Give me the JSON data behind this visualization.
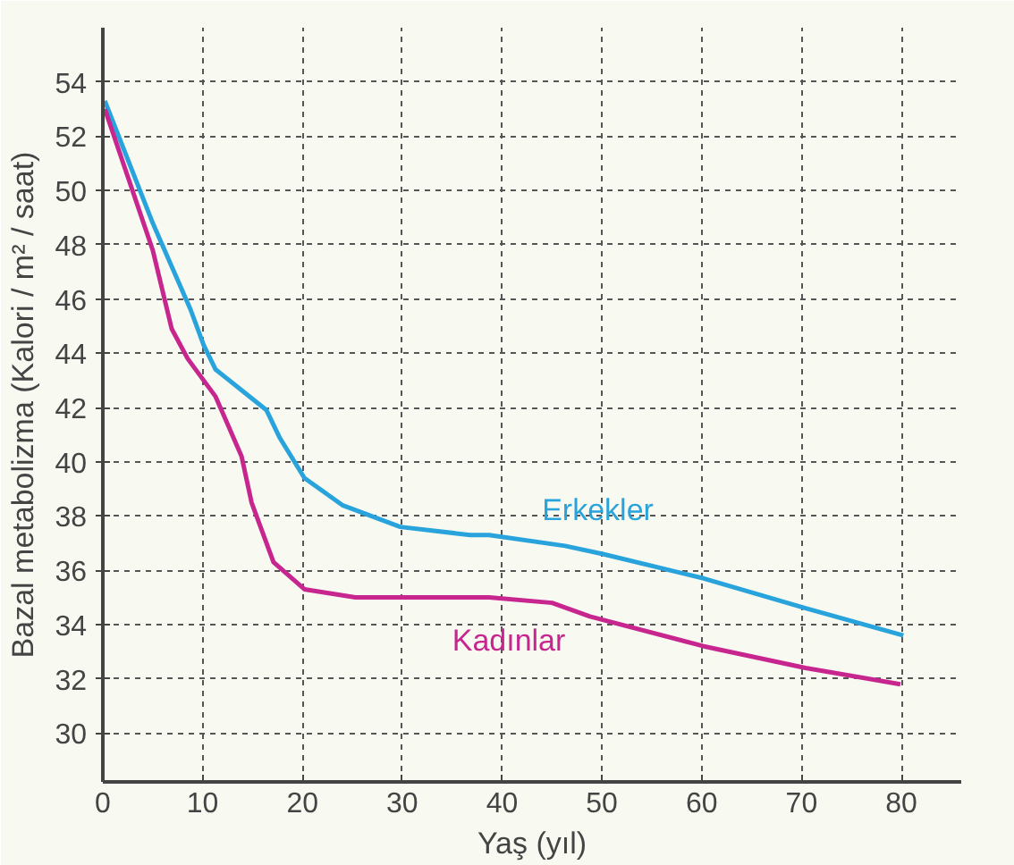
{
  "chart_data": {
    "type": "line",
    "xlabel": "Yaş (yıl)",
    "ylabel": "Bazal metabolizma (Kalori / m² / saat)",
    "xlim": [
      0,
      86
    ],
    "ylim": [
      28.2,
      56
    ],
    "xticks": [
      0,
      10,
      20,
      30,
      40,
      50,
      60,
      70,
      80
    ],
    "yticks": [
      30,
      32,
      34,
      36,
      38,
      40,
      42,
      44,
      46,
      48,
      50,
      52,
      54
    ],
    "grid": true,
    "line_style": "solid",
    "series": [
      {
        "name": "Erkekler",
        "color": "#29a3dc",
        "x": [
          0.2,
          5,
          8.8,
          10.1,
          11.3,
          16.4,
          17.7,
          20.2,
          24,
          29.8,
          36.8,
          38.7,
          46.3,
          50.1,
          60.2,
          70.4,
          80.2
        ],
        "values": [
          53.3,
          48.8,
          45.6,
          44.3,
          43.4,
          41.9,
          40.9,
          39.4,
          38.4,
          37.6,
          37.3,
          37.3,
          36.9,
          36.6,
          35.7,
          34.6,
          33.6
        ]
      },
      {
        "name": "Kadınlar",
        "color": "#c8268f",
        "x": [
          0.2,
          5,
          6.9,
          8.5,
          11.3,
          13.9,
          14.9,
          17.1,
          20.2,
          25.3,
          36.8,
          38.7,
          45,
          48.8,
          60.2,
          70.4,
          79.9
        ],
        "values": [
          53,
          47.8,
          44.9,
          43.8,
          42.4,
          40.2,
          38.5,
          36.3,
          35.3,
          35,
          35,
          35,
          34.8,
          34.3,
          33.2,
          32.4,
          31.8
        ]
      }
    ]
  }
}
